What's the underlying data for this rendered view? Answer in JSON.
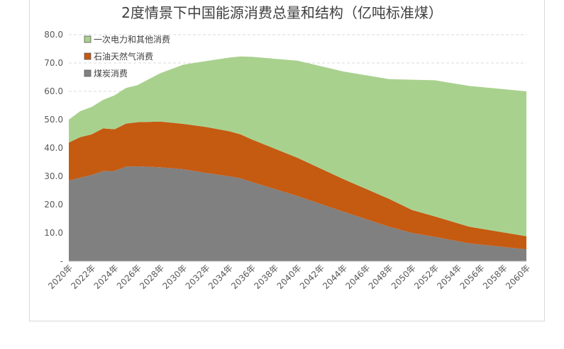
{
  "chart_data": {
    "type": "area",
    "stacked": true,
    "title": "2度情景下中国能源消费总量和结构（亿吨标准煤）",
    "xlabel": "",
    "ylabel": "",
    "ylim": [
      0,
      80
    ],
    "y_ticks": [
      "-",
      "10.0",
      "20.0",
      "30.0",
      "40.0",
      "50.0",
      "60.0",
      "70.0",
      "80.0"
    ],
    "grid": true,
    "legend_position": "top-left",
    "x": [
      2020,
      2021,
      2022,
      2023,
      2024,
      2025,
      2026,
      2028,
      2030,
      2032,
      2034,
      2035,
      2036,
      2040,
      2044,
      2048,
      2050,
      2052,
      2055,
      2060
    ],
    "x_ticks": [
      "2020年",
      "2022年",
      "2024年",
      "2026年",
      "2028年",
      "2030年",
      "2032年",
      "2034年",
      "2036年",
      "2038年",
      "2040年",
      "2042年",
      "2044年",
      "2046年",
      "2048年",
      "2050年",
      "2052年",
      "2054年",
      "2056年",
      "2058年",
      "2060年"
    ],
    "series": [
      {
        "name": "煤炭消费",
        "color": "#808080",
        "values": [
          28.5,
          29.5,
          30.5,
          31.8,
          31.9,
          33.4,
          33.5,
          33.2,
          32.5,
          31.2,
          30.0,
          29.3,
          28.0,
          23.0,
          17.5,
          12.2,
          10.0,
          8.6,
          6.3,
          4.2
        ]
      },
      {
        "name": "石油天然气消费",
        "color": "#c55a11",
        "values": [
          13.4,
          14.3,
          14.3,
          15.1,
          14.7,
          15.2,
          15.6,
          16.1,
          16.0,
          16.2,
          15.9,
          15.5,
          15.0,
          13.5,
          11.5,
          9.8,
          8.1,
          7.2,
          5.9,
          4.6
        ]
      },
      {
        "name": "一次电力和其他消费",
        "color": "#a9d18e",
        "values": [
          8.1,
          9.2,
          9.7,
          10.1,
          12.0,
          12.6,
          13.1,
          17.1,
          20.9,
          23.3,
          26.0,
          27.5,
          29.2,
          34.3,
          38.0,
          42.3,
          46.0,
          48.1,
          49.7,
          51.2
        ]
      }
    ]
  }
}
